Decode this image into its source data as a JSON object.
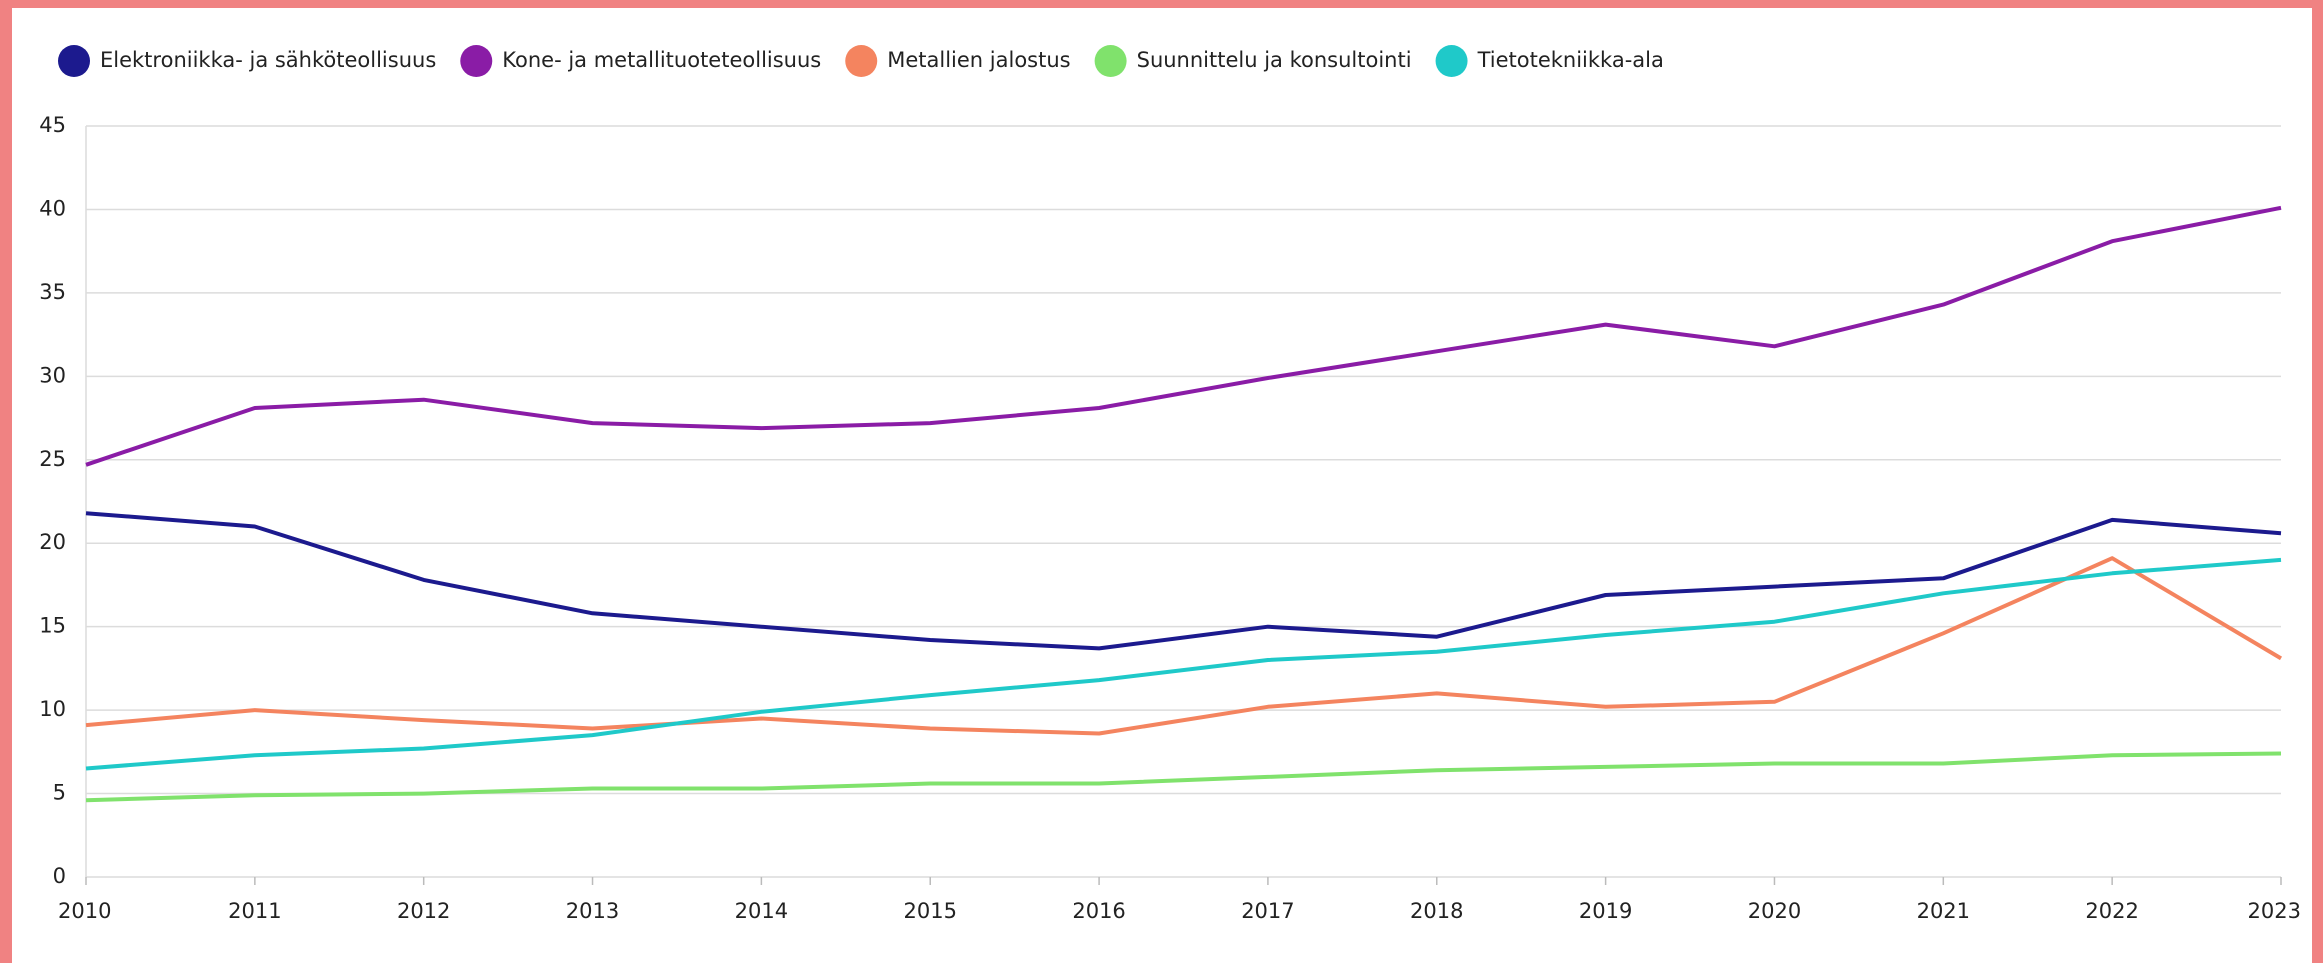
{
  "chart_data": {
    "type": "line",
    "x": [
      2010,
      2011,
      2012,
      2013,
      2014,
      2015,
      2016,
      2017,
      2018,
      2019,
      2020,
      2021,
      2022,
      2023
    ],
    "xlim": [
      2010,
      2023
    ],
    "xticks": [
      2010,
      2011,
      2012,
      2013,
      2014,
      2015,
      2016,
      2017,
      2018,
      2019,
      2020,
      2021,
      2022,
      2023
    ],
    "ylim": [
      0,
      45
    ],
    "yticks": [
      0,
      5,
      10,
      15,
      20,
      25,
      30,
      35,
      40,
      45
    ],
    "grid": true,
    "legend": "top",
    "series": [
      {
        "name": "Elektroniikka- ja sähköteollisuus",
        "color": "#1c1a8e",
        "values": [
          21.8,
          21.0,
          17.8,
          15.8,
          15.0,
          14.2,
          13.7,
          15.0,
          14.4,
          16.9,
          17.4,
          17.9,
          21.4,
          20.6
        ]
      },
      {
        "name": "Kone- ja metallituoteteollisuus",
        "color": "#8a1ca6",
        "values": [
          24.7,
          28.1,
          28.6,
          27.2,
          26.9,
          27.2,
          28.1,
          29.9,
          31.5,
          33.1,
          31.8,
          34.3,
          38.1,
          40.1
        ]
      },
      {
        "name": "Metallien jalostus",
        "color": "#f4845f",
        "values": [
          9.1,
          10.0,
          9.4,
          8.9,
          9.5,
          8.9,
          8.6,
          10.2,
          11.0,
          10.2,
          10.5,
          14.6,
          19.1,
          13.1
        ]
      },
      {
        "name": "Suunnittelu ja konsultointi",
        "color": "#80e26c",
        "values": [
          4.6,
          4.9,
          5.0,
          5.3,
          5.3,
          5.6,
          5.6,
          6.0,
          6.4,
          6.6,
          6.8,
          6.8,
          7.3,
          7.4
        ]
      },
      {
        "name": "Tietotekniikka-ala",
        "color": "#1fc9c9",
        "values": [
          6.5,
          7.3,
          7.7,
          8.5,
          9.9,
          10.9,
          11.8,
          13.0,
          13.5,
          14.5,
          15.3,
          17.0,
          18.2,
          19.0
        ]
      }
    ]
  }
}
